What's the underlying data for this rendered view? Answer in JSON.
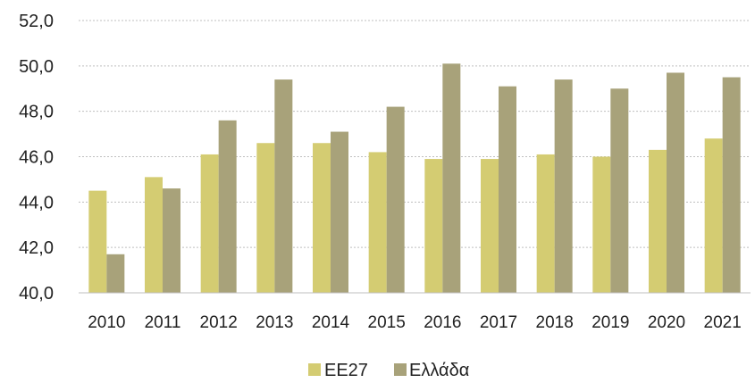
{
  "chart_data": {
    "type": "bar",
    "categories": [
      "2010",
      "2011",
      "2012",
      "2013",
      "2014",
      "2015",
      "2016",
      "2017",
      "2018",
      "2019",
      "2020",
      "2021"
    ],
    "series": [
      {
        "name": "ΕΕ27",
        "color": "#d4cc72",
        "values": [
          44.5,
          45.1,
          46.1,
          46.6,
          46.6,
          46.2,
          45.9,
          45.9,
          46.1,
          46.0,
          46.3,
          46.8
        ]
      },
      {
        "name": "Ελλάδα",
        "color": "#a8a27a",
        "values": [
          41.7,
          44.6,
          47.6,
          49.4,
          47.1,
          48.2,
          50.1,
          49.1,
          49.4,
          49.0,
          49.7,
          49.5
        ]
      }
    ],
    "yticks": [
      "40,0",
      "42,0",
      "44,0",
      "46,0",
      "48,0",
      "50,0",
      "52,0"
    ],
    "ylim": [
      40,
      52
    ],
    "grid": true,
    "legend_position": "bottom"
  }
}
